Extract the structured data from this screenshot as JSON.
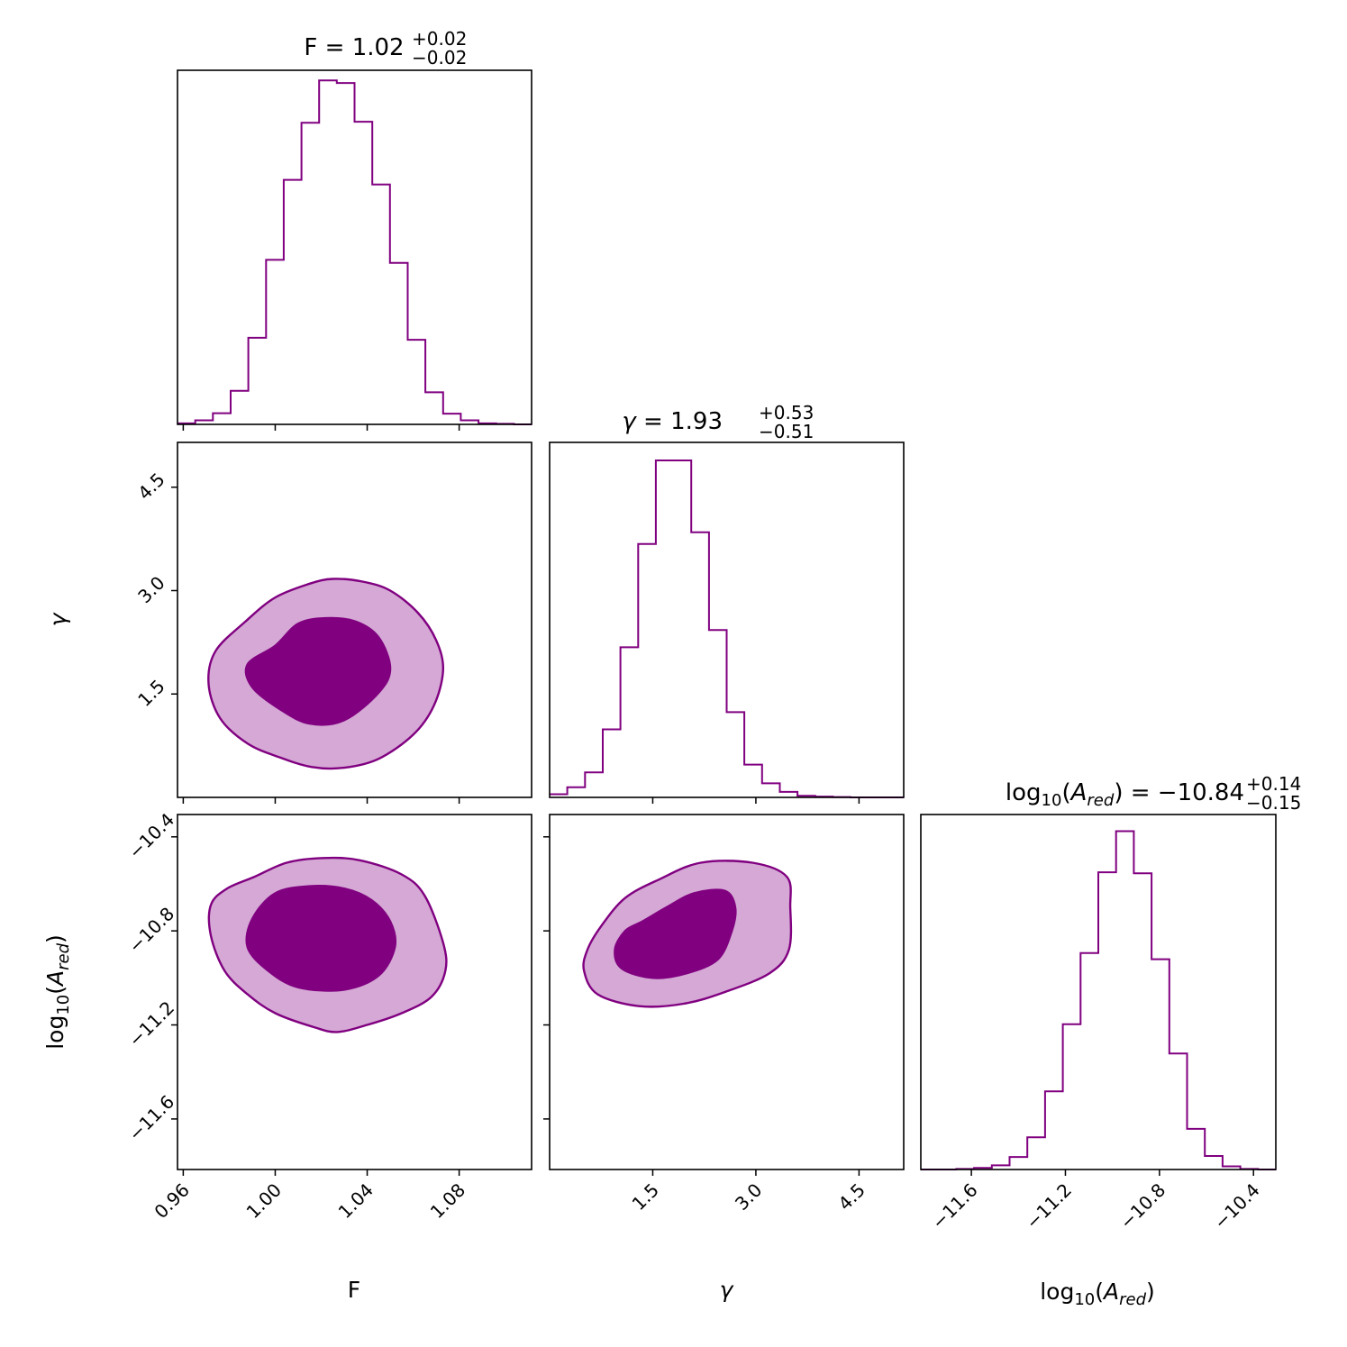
{
  "colors": {
    "line": "#800080",
    "fill_inner": "#800080",
    "fill_outer": "#d5a8d5",
    "axis": "#000000"
  },
  "chart_data": {
    "type": "corner",
    "parameters": [
      {
        "key": "F",
        "axis_label": "F",
        "title": {
          "prefix": "F = ",
          "value": "1.02",
          "plus": "+0.02",
          "minus": "−0.02"
        },
        "range": [
          0.9575,
          1.1115
        ],
        "ticks": [
          0.96,
          1.0,
          1.04,
          1.08
        ],
        "tick_labels": [
          "0.96",
          "1.00",
          "1.04",
          "1.08"
        ],
        "hist": {
          "edges_start": 0.9575,
          "bin_width": 0.0077,
          "counts": [
            0.2,
            0.8,
            2.2,
            6.6,
            17.0,
            32.3,
            48.0,
            59.2,
            67.5,
            67.0,
            59.4,
            47.1,
            31.7,
            16.6,
            6.3,
            2.1,
            0.8,
            0.2,
            0.1,
            0.0
          ],
          "ymax": 69.5
        }
      },
      {
        "key": "gamma",
        "axis_label": "γ",
        "title": {
          "prefix": "γ = ",
          "value": "1.93",
          "plus": "+0.53",
          "minus": "−0.51"
        },
        "range": [
          0.0,
          5.15
        ],
        "ticks": [
          1.5,
          3.0,
          4.5
        ],
        "tick_labels": [
          "1.5",
          "3.0",
          "4.5"
        ],
        "hist": {
          "edges_start": 0.0,
          "bin_width": 0.2575,
          "counts": [
            0.4,
            1.3,
            3.2,
            8.7,
            19.2,
            32.4,
            43.1,
            43.1,
            33.9,
            21.4,
            10.9,
            4.2,
            1.8,
            0.7,
            0.2,
            0.1,
            0.05,
            0.0,
            0.0,
            0.0
          ],
          "ymax": 45.4
        }
      },
      {
        "key": "log10_A_red",
        "axis_label": "log10(A_red)",
        "title": {
          "prefix": "log10(A_red) = ",
          "value": "−10.84",
          "plus": "+0.14",
          "minus": "−0.15"
        },
        "range": [
          -11.815,
          -10.305
        ],
        "ticks": [
          -11.6,
          -11.2,
          -10.8,
          -10.4
        ],
        "tick_labels": [
          "−11.6",
          "−11.2",
          "−10.8",
          "−10.4"
        ],
        "hist": {
          "edges_start": -11.815,
          "bin_width": 0.0755,
          "counts": [
            0.0,
            0.0,
            0.1,
            0.3,
            0.8,
            2.4,
            6.2,
            15.0,
            27.9,
            41.6,
            57.1,
            65.0,
            56.9,
            40.4,
            22.3,
            7.8,
            2.6,
            0.6,
            0.1,
            0.0
          ],
          "ymax": 68.2
        }
      }
    ],
    "contours": [
      {
        "x_param": "F",
        "y_param": "gamma",
        "outer": [
          [
            0.987,
            2.55
          ],
          [
            1.0,
            2.9
          ],
          [
            1.015,
            3.1
          ],
          [
            1.025,
            3.17
          ],
          [
            1.038,
            3.13
          ],
          [
            1.05,
            3.0
          ],
          [
            1.062,
            2.68
          ],
          [
            1.07,
            2.28
          ],
          [
            1.073,
            1.85
          ],
          [
            1.069,
            1.33
          ],
          [
            1.06,
            0.91
          ],
          [
            1.045,
            0.56
          ],
          [
            1.03,
            0.43
          ],
          [
            1.016,
            0.44
          ],
          [
            1.002,
            0.58
          ],
          [
            0.988,
            0.78
          ],
          [
            0.976,
            1.15
          ],
          [
            0.971,
            1.65
          ],
          [
            0.974,
            2.12
          ]
        ],
        "inner": [
          [
            1.0,
            2.2
          ],
          [
            1.01,
            2.52
          ],
          [
            1.022,
            2.6
          ],
          [
            1.035,
            2.55
          ],
          [
            1.045,
            2.32
          ],
          [
            1.05,
            1.87
          ],
          [
            1.045,
            1.52
          ],
          [
            1.03,
            1.12
          ],
          [
            1.015,
            1.07
          ],
          [
            1.002,
            1.28
          ],
          [
            0.99,
            1.6
          ],
          [
            0.988,
            1.93
          ]
        ]
      },
      {
        "x_param": "F",
        "y_param": "log10_A_red",
        "outer": [
          [
            0.991,
            -10.57
          ],
          [
            1.005,
            -10.51
          ],
          [
            1.021,
            -10.49
          ],
          [
            1.037,
            -10.5
          ],
          [
            1.055,
            -10.56
          ],
          [
            1.065,
            -10.65
          ],
          [
            1.073,
            -10.85
          ],
          [
            1.074,
            -10.97
          ],
          [
            1.068,
            -11.08
          ],
          [
            1.055,
            -11.15
          ],
          [
            1.04,
            -11.2
          ],
          [
            1.027,
            -11.23
          ],
          [
            1.017,
            -11.21
          ],
          [
            1.0,
            -11.15
          ],
          [
            0.988,
            -11.07
          ],
          [
            0.978,
            -10.97
          ],
          [
            0.972,
            -10.82
          ],
          [
            0.972,
            -10.69
          ],
          [
            0.979,
            -10.62
          ]
        ],
        "inner": [
          [
            1.0,
            -10.64
          ],
          [
            1.015,
            -10.61
          ],
          [
            1.03,
            -10.62
          ],
          [
            1.042,
            -10.67
          ],
          [
            1.05,
            -10.76
          ],
          [
            1.052,
            -10.87
          ],
          [
            1.045,
            -10.99
          ],
          [
            1.03,
            -11.05
          ],
          [
            1.01,
            -11.04
          ],
          [
            0.997,
            -10.97
          ],
          [
            0.988,
            -10.87
          ],
          [
            0.99,
            -10.75
          ]
        ]
      },
      {
        "x_param": "gamma",
        "y_param": "log10_A_red",
        "outer": [
          [
            1.6,
            -10.58
          ],
          [
            2.2,
            -10.51
          ],
          [
            2.95,
            -10.51
          ],
          [
            3.45,
            -10.57
          ],
          [
            3.5,
            -10.7
          ],
          [
            3.48,
            -10.88
          ],
          [
            3.2,
            -10.98
          ],
          [
            2.55,
            -11.06
          ],
          [
            1.95,
            -11.11
          ],
          [
            1.3,
            -11.12
          ],
          [
            0.7,
            -11.07
          ],
          [
            0.5,
            -10.97
          ],
          [
            0.55,
            -10.88
          ],
          [
            0.75,
            -10.78
          ],
          [
            1.1,
            -10.66
          ]
        ],
        "inner": [
          [
            1.7,
            -10.7
          ],
          [
            2.1,
            -10.64
          ],
          [
            2.55,
            -10.63
          ],
          [
            2.7,
            -10.7
          ],
          [
            2.65,
            -10.8
          ],
          [
            2.45,
            -10.92
          ],
          [
            2.0,
            -10.98
          ],
          [
            1.5,
            -11.0
          ],
          [
            1.05,
            -10.96
          ],
          [
            0.95,
            -10.88
          ],
          [
            1.1,
            -10.8
          ],
          [
            1.35,
            -10.76
          ]
        ]
      }
    ]
  }
}
